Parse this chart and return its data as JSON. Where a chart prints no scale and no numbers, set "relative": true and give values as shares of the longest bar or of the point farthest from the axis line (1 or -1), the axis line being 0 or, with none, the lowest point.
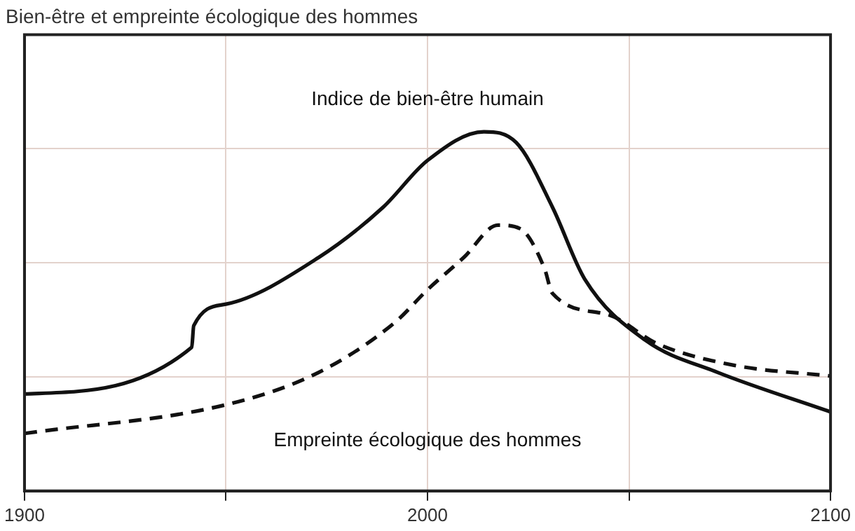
{
  "chart_data": {
    "type": "line",
    "title": "Bien-être et empreinte écologique des hommes",
    "relative": true,
    "xlim": [
      1900,
      2100
    ],
    "xticks": [
      1900,
      {
        "value": 1950,
        "label": null
      },
      2000,
      {
        "value": 2050,
        "label": null
      },
      2100
    ],
    "grid": true,
    "legend": false,
    "marker": "none",
    "tick_labels": "x",
    "series": [
      {
        "name": "Indice de bien-être humain",
        "color": "#111111",
        "line_style": "solid",
        "x": [
          1900,
          1941.5,
          1942,
          1950,
          1973,
          1989,
          2000,
          2014,
          2022,
          2031,
          2039,
          2054,
          2072,
          2100
        ],
        "values": [
          0.27,
          0.4,
          0.46,
          0.52,
          0.65,
          0.79,
          0.92,
          1,
          0.97,
          0.79,
          0.59,
          0.42,
          0.33,
          0.22
        ]
      },
      {
        "name": "Empreinte écologique des hommes",
        "color": "#111111",
        "line_style": "dashed",
        "x": [
          1900,
          1950,
          1973,
          1992,
          2000,
          2009,
          2017.5,
          2023,
          2029,
          2031,
          2045,
          2057,
          2076,
          2100
        ],
        "values": [
          0.16,
          0.24,
          0.33,
          0.47,
          0.56,
          0.65,
          0.74,
          0.73,
          0.62,
          0.55,
          0.49,
          0.41,
          0.35,
          0.32
        ]
      }
    ]
  }
}
